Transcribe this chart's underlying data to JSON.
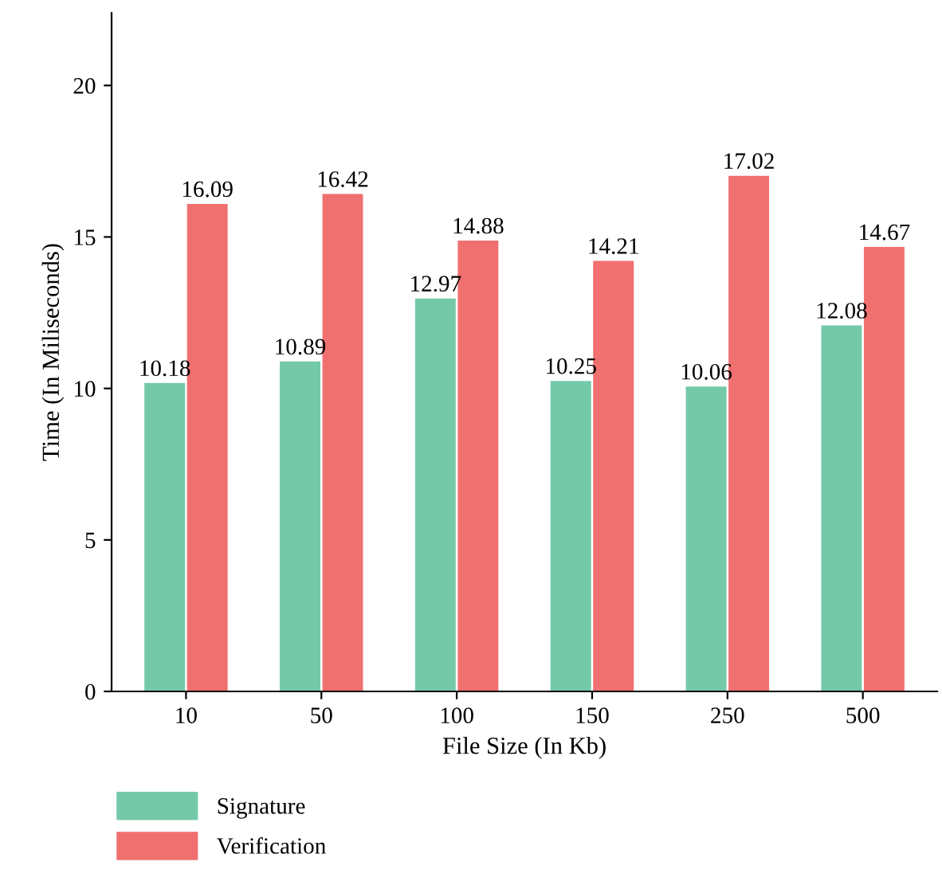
{
  "chart_data": {
    "type": "bar",
    "xlabel": "File Size (In Kb)",
    "ylabel": "Time (In Miliseconds)",
    "categories": [
      "10",
      "50",
      "100",
      "150",
      "250",
      "500"
    ],
    "series": [
      {
        "name": "Signature",
        "color": "#74c9a8",
        "values": [
          10.18,
          10.89,
          12.97,
          10.25,
          10.06,
          12.08
        ]
      },
      {
        "name": "Verification",
        "color": "#f07070",
        "values": [
          16.09,
          16.42,
          14.88,
          14.21,
          17.02,
          14.67
        ]
      }
    ],
    "ylim": [
      0,
      22.4
    ],
    "yticks": [
      0,
      5,
      10,
      15,
      20
    ],
    "data_labels": true,
    "grid": false,
    "legend": "bottom left"
  }
}
